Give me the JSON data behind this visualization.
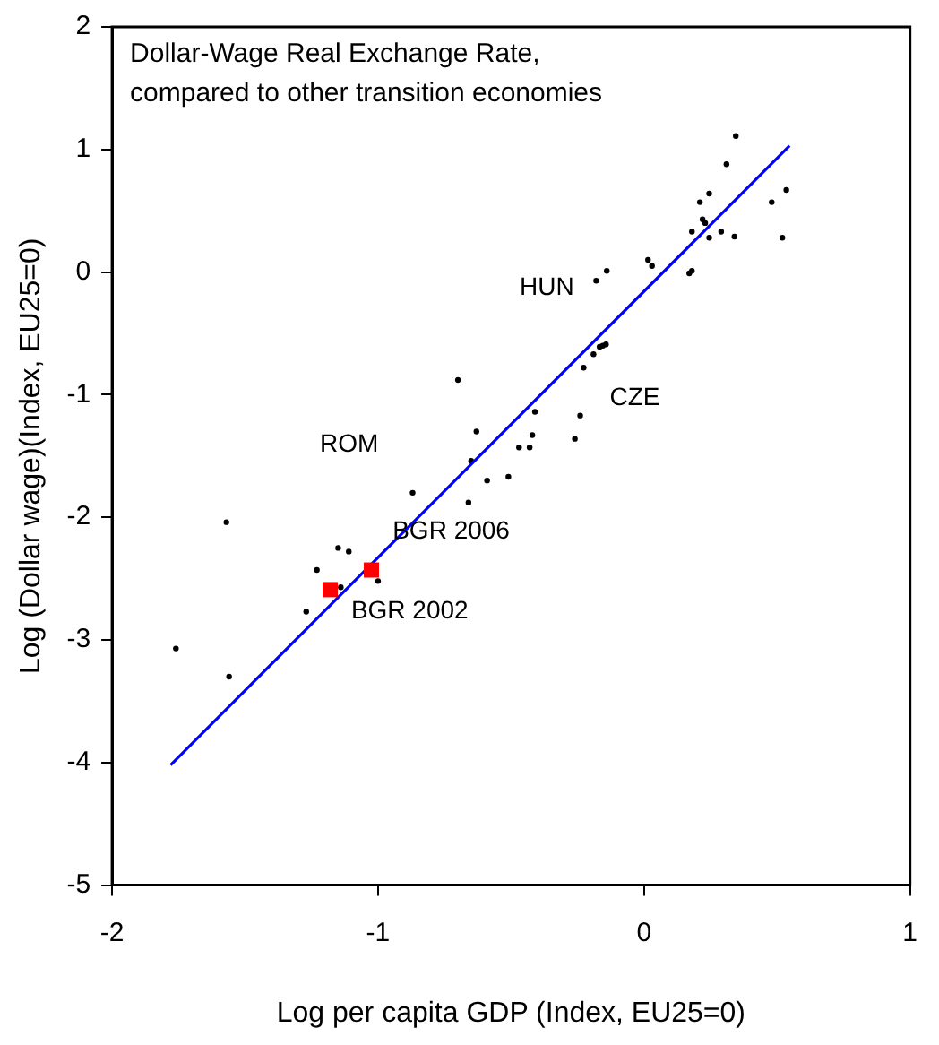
{
  "chart_data": {
    "type": "scatter",
    "title": "Dollar-Wage Real Exchange Rate,\ncompared to other transition economies",
    "xlabel": "Log per capita GDP (Index, EU25=0)",
    "ylabel": "Log (Dollar wage)(Index, EU25=0)",
    "xlim": [
      -2,
      1
    ],
    "xticks": [
      -2,
      -1,
      0,
      1
    ],
    "ylim": [
      -5,
      2
    ],
    "yticks": [
      -5,
      -4,
      -3,
      -2,
      -1,
      0,
      1,
      2
    ],
    "grid": false,
    "legend": false,
    "marker": "circle",
    "series": [
      {
        "color": "#000000",
        "x": [
          0.345,
          0.31,
          0.535,
          0.245,
          0.21,
          0.48,
          0.22,
          0.23,
          0.18,
          0.245,
          0.29,
          0.34,
          0.52,
          0.015,
          0.03,
          0.18,
          0.17,
          -0.14,
          -0.18,
          -0.143,
          -0.155,
          -0.167,
          -0.19,
          -0.227,
          -0.7,
          -0.24,
          -0.41,
          -0.26,
          -0.63,
          -0.42,
          -0.47,
          -0.43,
          -0.65,
          -0.59,
          -0.51,
          -0.87,
          -0.66,
          -1.57,
          -1.15,
          -1.11,
          -1.23,
          -1.0,
          -1.14,
          -1.27,
          -1.76,
          -1.56
        ],
        "values": [
          1.11,
          0.88,
          0.67,
          0.64,
          0.57,
          0.57,
          0.43,
          0.4,
          0.33,
          0.28,
          0.33,
          0.29,
          0.28,
          0.1,
          0.05,
          0.01,
          -0.01,
          0.01,
          -0.07,
          -0.59,
          -0.6,
          -0.61,
          -0.67,
          -0.78,
          -0.88,
          -1.17,
          -1.14,
          -1.36,
          -1.3,
          -1.33,
          -1.43,
          -1.43,
          -1.54,
          -1.7,
          -1.67,
          -1.8,
          -1.88,
          -2.04,
          -2.25,
          -2.28,
          -2.43,
          -2.52,
          -2.57,
          -2.77,
          -3.07,
          -3.3
        ]
      },
      {
        "type": "line",
        "color": "#0000ff",
        "marker": "none",
        "line_style": "solid",
        "x": [
          -1.78,
          0.547
        ],
        "values": [
          -4.02,
          1.03
        ]
      },
      {
        "type": "scatter",
        "color": "#ff0000",
        "marker": "square",
        "x": [
          -1.025,
          -1.18
        ],
        "values": [
          -2.43,
          -2.59
        ]
      }
    ],
    "annotations": [
      "HUN",
      "CZE",
      "ROM",
      "BGR 2006",
      "BGR 2002"
    ]
  }
}
